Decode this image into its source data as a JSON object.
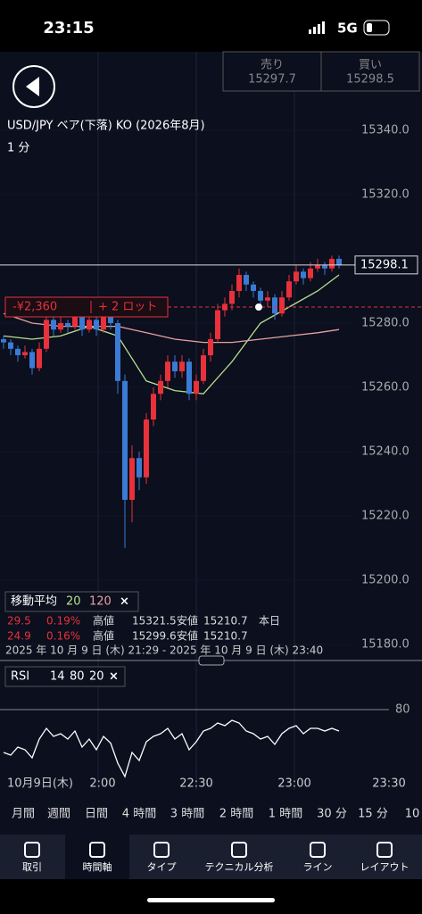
{
  "status": {
    "time": "23:15",
    "network": "5G"
  },
  "quote": {
    "sell_label": "売り",
    "sell": "15297.7",
    "buy_label": "買い",
    "buy": "15298.5"
  },
  "chart": {
    "title": "USD/JPY ベア(下落) KO (2026年8月)",
    "interval": "1 分",
    "position": {
      "pnl": "-¥2,360",
      "lots": "+ 2 ロット",
      "price": 15285
    },
    "last_price": 15298.1,
    "ylim": [
      15178,
      15352
    ],
    "yticks": [
      {
        "value": 15340,
        "label": "15340.0"
      },
      {
        "value": 15320,
        "label": "15320.0"
      },
      {
        "value": 15280,
        "label": "15280.0"
      },
      {
        "value": 15260,
        "label": "15260.0"
      },
      {
        "value": 15240,
        "label": "15240.0"
      },
      {
        "value": 15220,
        "label": "15220.0"
      },
      {
        "value": 15200,
        "label": "15200.0"
      },
      {
        "value": 15180,
        "label": "15180.0"
      }
    ],
    "candles": [
      [
        15275,
        15276,
        15272,
        15274
      ],
      [
        15274,
        15275,
        15270,
        15272
      ],
      [
        15272,
        15273,
        15268,
        15270
      ],
      [
        15270,
        15273,
        15269,
        15271
      ],
      [
        15271,
        15272,
        15264,
        15266
      ],
      [
        15266,
        15274,
        15265,
        15272
      ],
      [
        15272,
        15283,
        15271,
        15281
      ],
      [
        15281,
        15282,
        15276,
        15278
      ],
      [
        15278,
        15282,
        15277,
        15280
      ],
      [
        15280,
        15281,
        15277,
        15279
      ],
      [
        15279,
        15284,
        15278,
        15282
      ],
      [
        15282,
        15283,
        15276,
        15278
      ],
      [
        15278,
        15283,
        15277,
        15281
      ],
      [
        15281,
        15282,
        15276,
        15278
      ],
      [
        15278,
        15284,
        15277,
        15282
      ],
      [
        15282,
        15283,
        15278,
        15280
      ],
      [
        15280,
        15281,
        15258,
        15262
      ],
      [
        15262,
        15264,
        15210,
        15225
      ],
      [
        15225,
        15242,
        15218,
        15238
      ],
      [
        15238,
        15240,
        15228,
        15232
      ],
      [
        15232,
        15252,
        15230,
        15250
      ],
      [
        15250,
        15260,
        15248,
        15258
      ],
      [
        15258,
        15264,
        15256,
        15262
      ],
      [
        15262,
        15270,
        15260,
        15268
      ],
      [
        15268,
        15270,
        15263,
        15265
      ],
      [
        15265,
        15270,
        15263,
        15268
      ],
      [
        15268,
        15269,
        15256,
        15258
      ],
      [
        15258,
        15264,
        15256,
        15262
      ],
      [
        15262,
        15272,
        15261,
        15270
      ],
      [
        15270,
        15277,
        15268,
        15275
      ],
      [
        15275,
        15286,
        15274,
        15284
      ],
      [
        15284,
        15288,
        15282,
        15286
      ],
      [
        15286,
        15292,
        15284,
        15290
      ],
      [
        15290,
        15297,
        15288,
        15295
      ],
      [
        15295,
        15296,
        15290,
        15292
      ],
      [
        15292,
        15293,
        15288,
        15290
      ],
      [
        15290,
        15291,
        15285,
        15287
      ],
      [
        15287,
        15290,
        15285,
        15288
      ],
      [
        15288,
        15289,
        15281,
        15283
      ],
      [
        15283,
        15290,
        15282,
        15288
      ],
      [
        15288,
        15295,
        15287,
        15293
      ],
      [
        15293,
        15298,
        15292,
        15296
      ],
      [
        15296,
        15297,
        15292,
        15294
      ],
      [
        15294,
        15299,
        15293,
        15297
      ],
      [
        15297,
        15300,
        15296,
        15298
      ],
      [
        15298,
        15299,
        15295,
        15297
      ],
      [
        15297,
        15301,
        15296,
        15300
      ],
      [
        15300,
        15301,
        15297,
        15298.1
      ]
    ],
    "ma_x": [
      0,
      4,
      8,
      12,
      16,
      20,
      24,
      28,
      32,
      36,
      40,
      44,
      47
    ],
    "ma": [
      {
        "name": "20",
        "color": "#b7e08c",
        "values": [
          15276,
          15275,
          15276,
          15279,
          15276,
          15262,
          15259,
          15258,
          15268,
          15280,
          15285,
          15290,
          15295
        ]
      },
      {
        "name": "120",
        "color": "#e8a0a0",
        "values": [
          15283,
          15280,
          15279,
          15279,
          15279,
          15277,
          15275,
          15274,
          15274,
          15275,
          15276,
          15277,
          15278
        ]
      }
    ],
    "ma_label": "移動平均",
    "stats": [
      [
        "29.5",
        "0.19%",
        "高値",
        "15321.5",
        "安値",
        "15210.7",
        "本日"
      ],
      [
        "24.9",
        "0.16%",
        "高値",
        "15299.6",
        "安値",
        "15210.7"
      ]
    ],
    "range": "2025 年 10 月 9 日 (木) 21:29 - 2025 年 10 月 9 日 (木) 23:40",
    "rsi": {
      "label": "RSI",
      "params": [
        "14",
        "80",
        "20"
      ],
      "ylim": [
        30,
        82
      ],
      "yticks": [
        80
      ],
      "values": [
        48,
        46,
        52,
        50,
        44,
        58,
        66,
        60,
        62,
        58,
        64,
        52,
        58,
        50,
        60,
        55,
        40,
        30,
        48,
        42,
        56,
        60,
        62,
        66,
        58,
        62,
        50,
        56,
        64,
        66,
        70,
        68,
        72,
        70,
        64,
        62,
        58,
        60,
        54,
        62,
        66,
        68,
        62,
        66,
        66,
        64,
        66,
        64
      ]
    },
    "time_labels": [
      "10月9日(木)",
      "2:00",
      "22:30",
      "23:00",
      "23:30"
    ]
  },
  "timeframes": [
    "月間",
    "週間",
    "日間",
    "4 時間",
    "3 時間",
    "2 時間",
    "1 時間",
    "30 分",
    "15 分",
    "10"
  ],
  "toolbar": [
    "取引",
    "時間軸",
    "タイプ",
    "テクニカル分析",
    "ライン",
    "レイアウト"
  ]
}
